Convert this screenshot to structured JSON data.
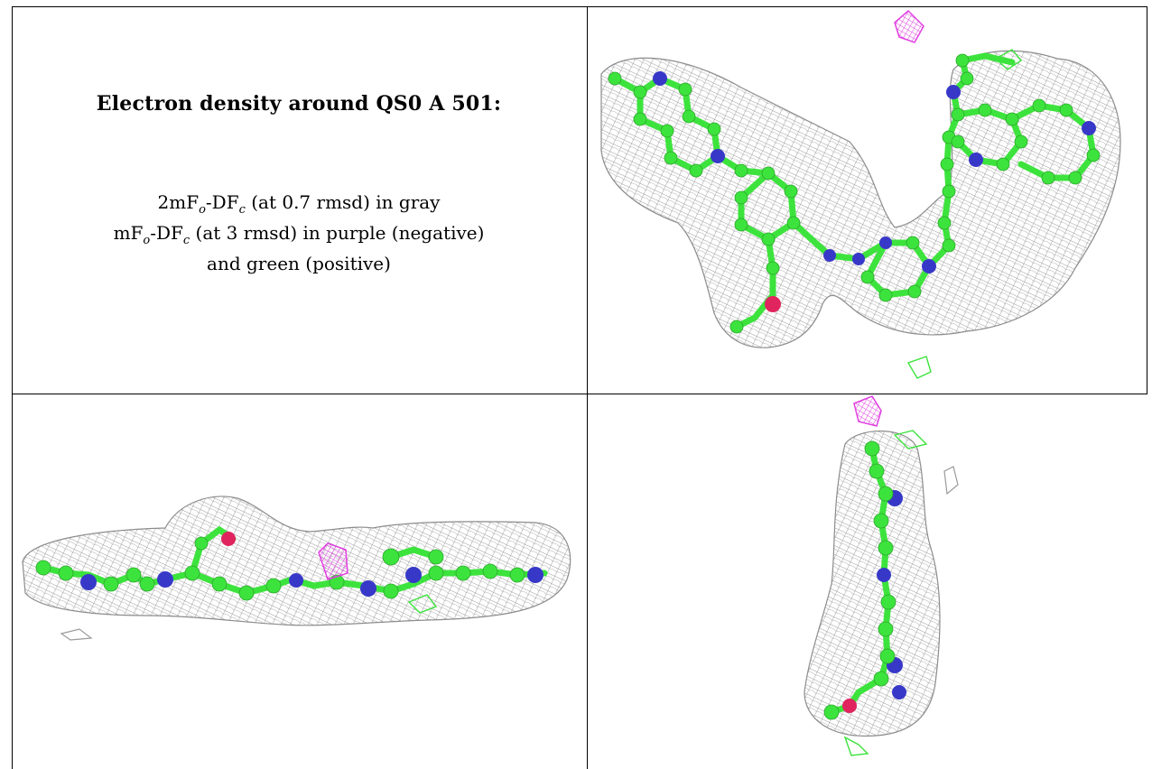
{
  "title": "Electron density around QS0 A 501:",
  "caption": {
    "line1_prefix": "2mF",
    "line1_sub1": "o",
    "line1_mid": "-DF",
    "line1_sub2": "c",
    "line1_suffix": " (at 0.7 rmsd) in gray",
    "line2_prefix": "mF",
    "line2_sub1": "o",
    "line2_mid": "-DF",
    "line2_sub2": "c",
    "line2_suffix": " (at 3 rmsd) in purple (negative)",
    "line3": "and green (positive)"
  },
  "colors": {
    "carbon": "#3de33d",
    "nitrogen": "#3838c8",
    "oxygen": "#e0245e",
    "mesh_gray": "#9a9a9a",
    "mesh_negative": "#e040e0",
    "mesh_positive": "#3de33d"
  }
}
